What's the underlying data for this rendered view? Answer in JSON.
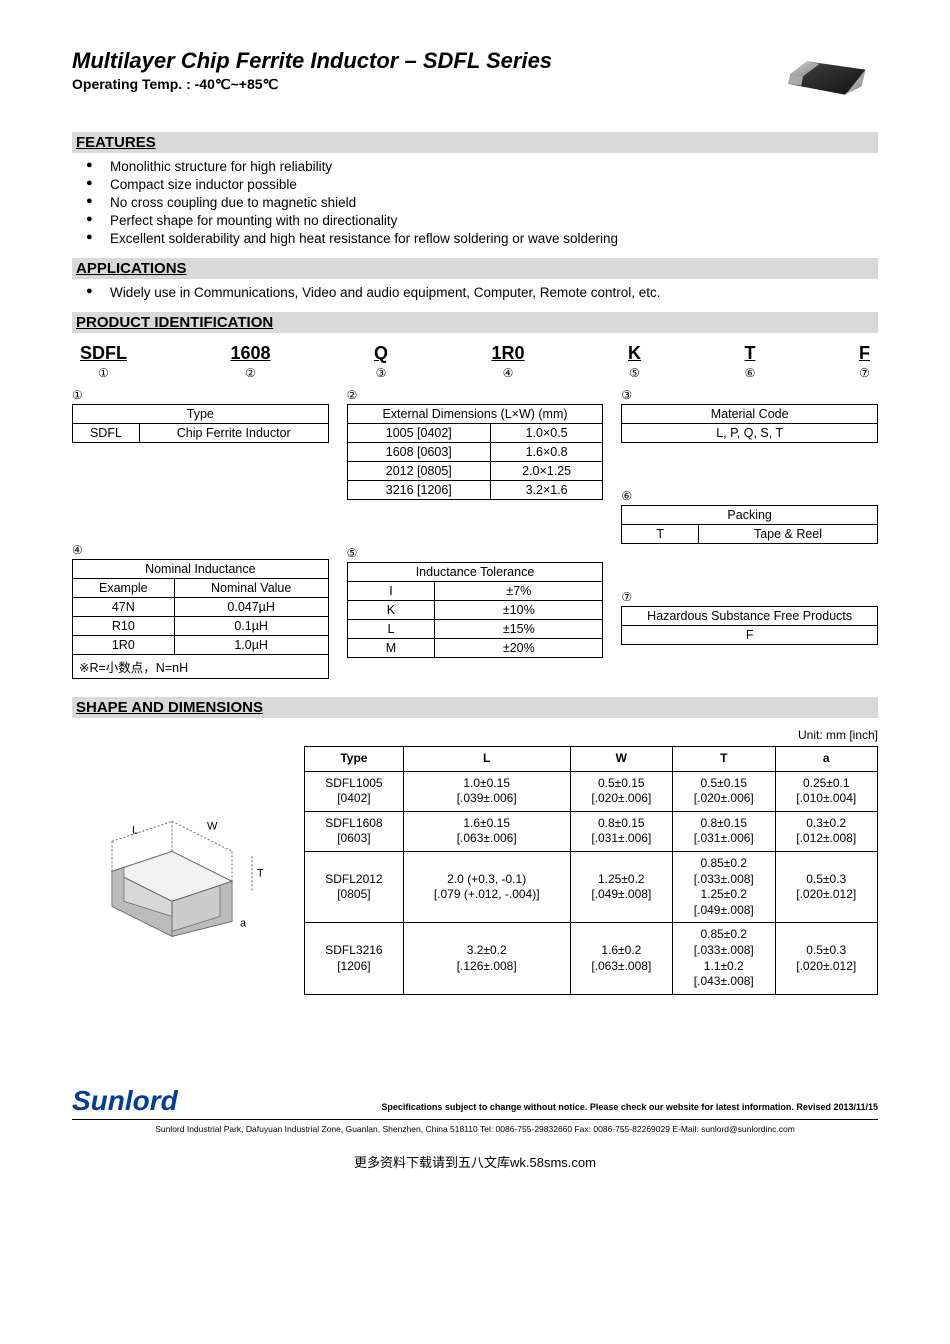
{
  "header": {
    "title": "Multilayer Chip Ferrite Inductor – SDFL Series",
    "subtitle": "Operating Temp. : -40℃~+85℃"
  },
  "sections": {
    "features": "FEATURES",
    "applications": "APPLICATIONS",
    "product_id": "PRODUCT IDENTIFICATION",
    "shape": "SHAPE AND DIMENSIONS"
  },
  "features_list": [
    "Monolithic structure for high reliability",
    "Compact size inductor possible",
    "No cross coupling due to magnetic shield",
    "Perfect shape for mounting with no directionality",
    "Excellent solderability and high heat resistance for   reflow soldering or wave soldering"
  ],
  "applications_list": [
    "Widely use in Communications,  Video and audio equipment, Computer, Remote control, etc."
  ],
  "codes": [
    {
      "val": "SDFL",
      "num": "①"
    },
    {
      "val": "1608",
      "num": "②"
    },
    {
      "val": "Q",
      "num": "③"
    },
    {
      "val": "1R0",
      "num": "④"
    },
    {
      "val": "K",
      "num": "⑤"
    },
    {
      "val": "T",
      "num": "⑥"
    },
    {
      "val": "F",
      "num": "⑦"
    }
  ],
  "table1": {
    "num": "①",
    "header": "Type",
    "rows": [
      [
        "SDFL",
        "Chip Ferrite Inductor"
      ]
    ]
  },
  "table2": {
    "num": "②",
    "header": "External Dimensions (L×W) (mm)",
    "rows": [
      [
        "1005 [0402]",
        "1.0×0.5"
      ],
      [
        "1608 [0603]",
        "1.6×0.8"
      ],
      [
        "2012 [0805]",
        "2.0×1.25"
      ],
      [
        "3216 [1206]",
        "3.2×1.6"
      ]
    ]
  },
  "table3": {
    "num": "③",
    "header": "Material Code",
    "rows": [
      [
        "L, P, Q, S, T"
      ]
    ]
  },
  "table4": {
    "num": "④",
    "header": "Nominal Inductance",
    "sub": [
      "Example",
      "Nominal Value"
    ],
    "rows": [
      [
        "47N",
        "0.047µH"
      ],
      [
        "R10",
        "0.1µH"
      ],
      [
        "1R0",
        "1.0µH"
      ]
    ],
    "note": "※R=小数点，N=nH"
  },
  "table5": {
    "num": "⑤",
    "header": "Inductance Tolerance",
    "rows": [
      [
        "I",
        "±7%"
      ],
      [
        "K",
        "±10%"
      ],
      [
        "L",
        "±15%"
      ],
      [
        "M",
        "±20%"
      ]
    ]
  },
  "table6": {
    "num": "⑥",
    "header": "Packing",
    "rows": [
      [
        "T",
        "Tape & Reel"
      ]
    ]
  },
  "table7": {
    "num": "⑦",
    "header": "Hazardous Substance Free Products",
    "rows": [
      [
        "F"
      ]
    ]
  },
  "dims": {
    "unit": "Unit: mm [inch]",
    "headers": [
      "Type",
      "L",
      "W",
      "T",
      "a"
    ],
    "rows": [
      [
        "SDFL1005\n[0402]",
        "1.0±0.15\n[.039±.006]",
        "0.5±0.15\n[.020±.006]",
        "0.5±0.15\n[.020±.006]",
        "0.25±0.1\n[.010±.004]"
      ],
      [
        "SDFL1608\n[0603]",
        "1.6±0.15\n[.063±.006]",
        "0.8±0.15\n[.031±.006]",
        "0.8±0.15\n[.031±.006]",
        "0.3±0.2\n[.012±.008]"
      ],
      [
        "SDFL2012\n[0805]",
        "2.0 (+0.3, -0.1)\n[.079 (+.012, -.004)]",
        "1.25±0.2\n[.049±.008]",
        "0.85±0.2\n[.033±.008]\n1.25±0.2\n[.049±.008]",
        "0.5±0.3\n[.020±.012]"
      ],
      [
        "SDFL3216\n[1206]",
        "3.2±0.2\n[.126±.008]",
        "1.6±0.2\n[.063±.008]",
        "0.85±0.2\n[.033±.008]\n1.1±0.2\n[.043±.008]",
        "0.5±0.3\n[.020±.012]"
      ]
    ]
  },
  "footer": {
    "logo": "Sunlord",
    "spec_note": "Specifications subject to change without notice. Please check our website for latest information.    Revised 2013/11/15",
    "address": "Sunlord Industrial Park, Dafuyuan Industrial Zone, Guanlan, Shenzhen, China 518110 Tel: 0086-755-29832660 Fax: 0086-755-82269029 E-Mail: sunlord@sunlordinc.com"
  },
  "bottom_note": "更多资料下载请到五八文库wk.58sms.com",
  "diagram_labels": {
    "L": "L",
    "W": "W",
    "T": "T",
    "a": "a"
  }
}
